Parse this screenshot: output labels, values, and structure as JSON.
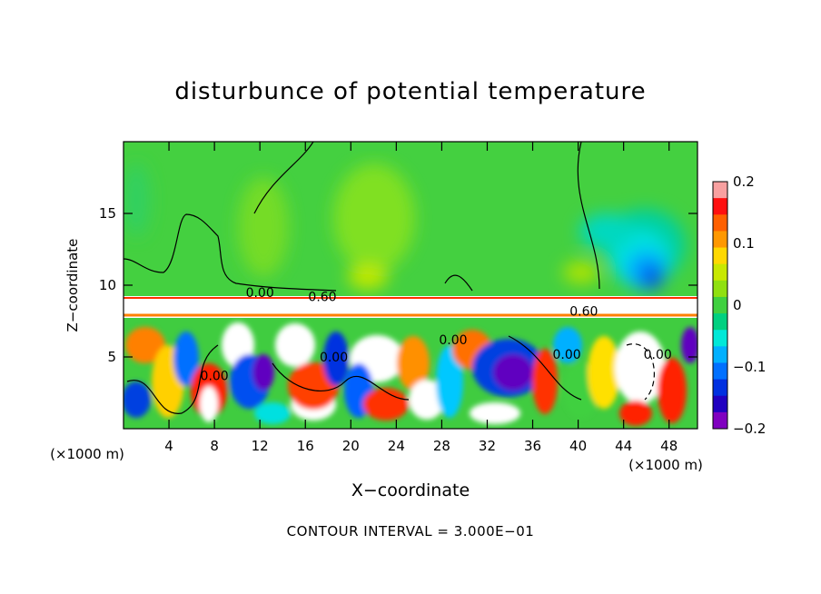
{
  "chart_data": {
    "type": "heatmap",
    "title": "disturbunce of potential temperature",
    "xlabel": "X−coordinate",
    "ylabel": "Z−coordinate",
    "x_unit": "(×1000 m)",
    "y_unit": "(×1000 m)",
    "xlim": [
      0,
      50.5
    ],
    "ylim": [
      0,
      20
    ],
    "x_ticks": [
      4,
      8,
      12,
      16,
      20,
      24,
      28,
      32,
      36,
      40,
      44,
      48
    ],
    "y_ticks": [
      5,
      10,
      15
    ],
    "colorbar": {
      "range": [
        -0.2,
        0.2
      ],
      "ticks": [
        "0.2",
        "0.1",
        "0",
        "−0.1",
        "−0.2"
      ],
      "colors": [
        "#f8a0a0",
        "#ff1010",
        "#ff6000",
        "#ff9800",
        "#ffd800",
        "#c8e800",
        "#90e010",
        "#40d040",
        "#00d080",
        "#00e8d8",
        "#00b0ff",
        "#0070ff",
        "#0030e0",
        "#2000c0",
        "#8000c0"
      ]
    },
    "contour_labels": [
      {
        "text": "0.00",
        "x": 12,
        "z": 9.5
      },
      {
        "text": "0.60",
        "x": 17.5,
        "z": 9.2
      },
      {
        "text": "0.00",
        "x": 8,
        "z": 3.7
      },
      {
        "text": "0.00",
        "x": 18.5,
        "z": 5.0
      },
      {
        "text": "0.00",
        "x": 29,
        "z": 6.2
      },
      {
        "text": "0.00",
        "x": 39,
        "z": 5.2
      },
      {
        "text": "0.60",
        "x": 40.5,
        "z": 8.2
      },
      {
        "text": "0.00",
        "x": 47,
        "z": 5.2
      }
    ],
    "footer": "CONTOUR INTERVAL = 3.000E−01"
  }
}
